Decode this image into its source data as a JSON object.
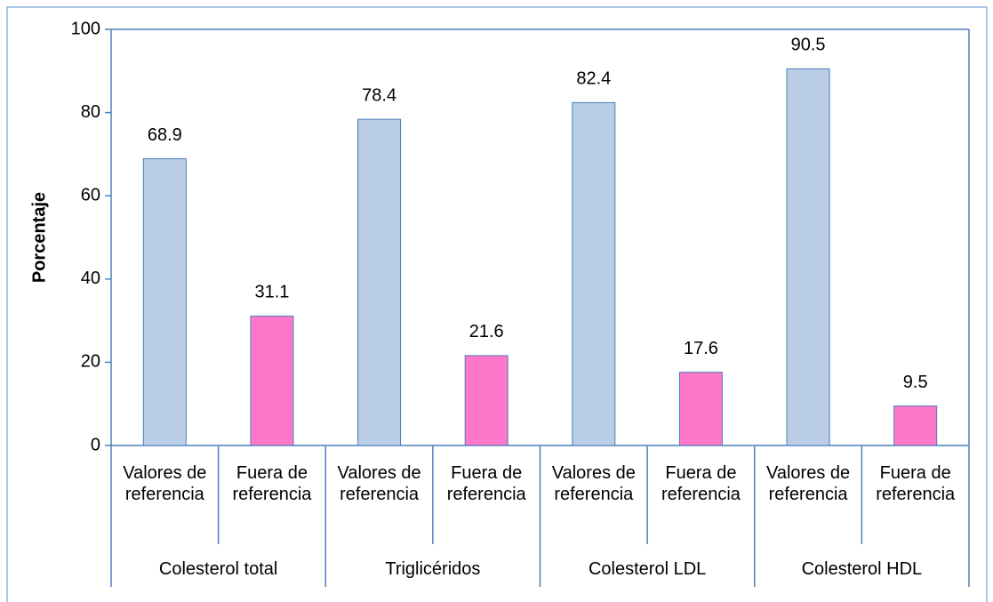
{
  "chart_data": {
    "type": "bar",
    "y_label": "Porcentaje",
    "groups": [
      "Colesterol total",
      "Triglicéridos",
      "Colesterol LDL",
      "Colesterol HDL"
    ],
    "categories": [
      "Valores de referencia",
      "Fuera de referencia",
      "Valores de referencia",
      "Fuera de referencia",
      "Valores de referencia",
      "Fuera de referencia",
      "Valores de referencia",
      "Fuera de referencia"
    ],
    "values": [
      68.9,
      31.1,
      78.4,
      21.6,
      82.4,
      17.6,
      90.5,
      9.5
    ],
    "colors": [
      "#b9cde5",
      "#ff77c8",
      "#b9cde5",
      "#ff77c8",
      "#b9cde5",
      "#ff77c8",
      "#b9cde5",
      "#ff77c8"
    ],
    "ylim": [
      0,
      100
    ],
    "yticks": [
      0,
      20,
      40,
      60,
      80,
      100
    ],
    "grid": false
  }
}
